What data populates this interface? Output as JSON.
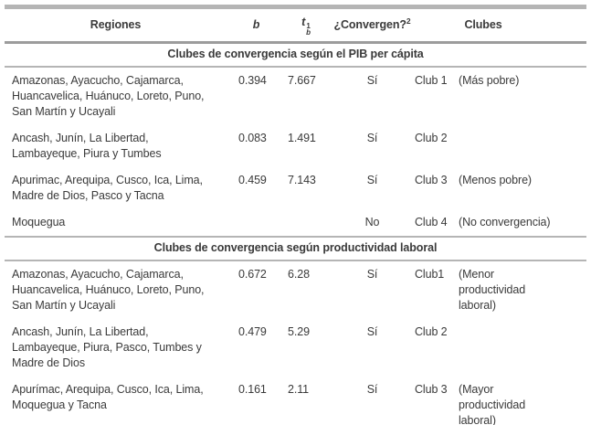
{
  "colors": {
    "text": "#3a3a3a",
    "rule_thick": "#b5b5b5",
    "rule_header": "#9c9c9c",
    "background": "#ffffff"
  },
  "table": {
    "headers": {
      "regiones": "Regiones",
      "b": "b",
      "t_base": "t",
      "t_sup": "1",
      "t_sub": "b",
      "convergen": "¿Convergen?",
      "convergen_sup": "2",
      "clubes": "Clubes"
    },
    "sections": [
      {
        "title": "Clubes de convergencia según el PIB per cápita",
        "rows": [
          {
            "regiones": "Amazonas, Ayacucho, Cajamarca, Huancavelica, Huánuco, Loreto, Puno, San Martín y Ucayali",
            "b": "0.394",
            "t": "7.667",
            "convergen": "Sí",
            "club": "Club 1",
            "note": "(Más pobre)"
          },
          {
            "regiones": "Ancash, Junín, La Libertad, Lambayeque, Piura y Tumbes",
            "b": "0.083",
            "t": "1.491",
            "convergen": "Sí",
            "club": "Club 2",
            "note": ""
          },
          {
            "regiones": "Apurimac, Arequipa, Cusco, Ica, Lima, Madre de Dios, Pasco y Tacna",
            "b": "0.459",
            "t": "7.143",
            "convergen": "Sí",
            "club": "Club 3",
            "note": "(Menos pobre)"
          },
          {
            "regiones": "Moquegua",
            "b": "",
            "t": "",
            "convergen": "No",
            "club": "Club 4",
            "note": "(No convergencia)"
          }
        ]
      },
      {
        "title": "Clubes de convergencia según productividad laboral",
        "rows": [
          {
            "regiones": "Amazonas, Ayacucho, Cajamarca, Huancavelica, Huánuco, Loreto, Puno, San Martín y Ucayali",
            "b": "0.672",
            "t": "6.28",
            "convergen": "Sí",
            "club": "Club1",
            "note": "(Menor productividad laboral)"
          },
          {
            "regiones": "Ancash, Junín, La Libertad, Lambayeque, Piura, Pasco, Tumbes y Madre de Dios",
            "b": "0.479",
            "t": "5.29",
            "convergen": "Sí",
            "club": "Club 2",
            "note": ""
          },
          {
            "regiones": "Apurímac, Arequipa, Cusco, Ica, Lima, Moquegua y Tacna",
            "b": "0.161",
            "t": "2.11",
            "convergen": "Sí",
            "club": "Club 3",
            "note": "(Mayor productividad laboral)"
          }
        ]
      }
    ]
  }
}
